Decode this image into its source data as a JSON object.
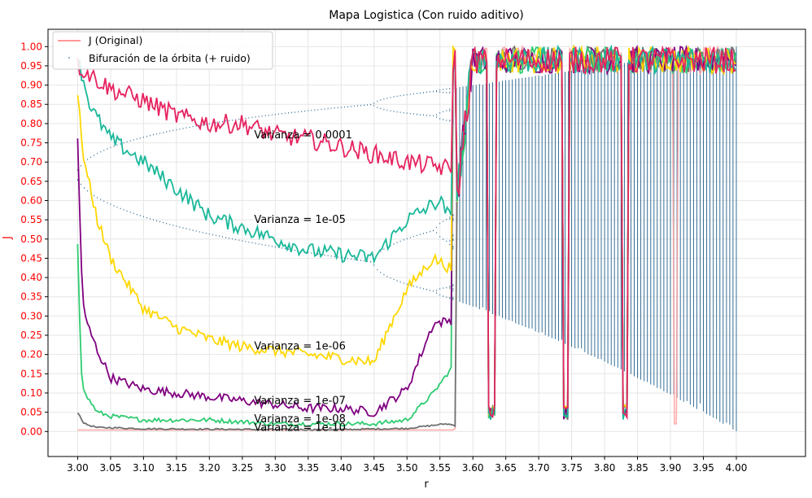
{
  "chart_data": {
    "type": "line",
    "title": "Mapa Logistica (Con ruido aditivo)",
    "xlabel": "r",
    "ylabel": "J",
    "xlim": [
      2.955,
      4.105
    ],
    "ylim": [
      -0.065,
      1.045
    ],
    "grid": true,
    "x_ticks": [
      "3.00",
      "3.05",
      "3.10",
      "3.15",
      "3.20",
      "3.25",
      "3.30",
      "3.35",
      "3.40",
      "3.45",
      "3.50",
      "3.55",
      "3.60",
      "3.65",
      "3.70",
      "3.75",
      "3.80",
      "3.85",
      "3.90",
      "3.95",
      "4.00"
    ],
    "y_ticks": [
      "0.00",
      "0.05",
      "0.10",
      "0.15",
      "0.20",
      "0.25",
      "0.30",
      "0.35",
      "0.40",
      "0.45",
      "0.50",
      "0.55",
      "0.60",
      "0.65",
      "0.70",
      "0.75",
      "0.80",
      "0.85",
      "0.90",
      "0.95",
      "1.00"
    ],
    "colors": {
      "bifurcation": "#1f5f8b",
      "original": "#ff9999",
      "v0_0001": "#e6235f",
      "v1e_05": "#1ab89a",
      "v1e_06": "#ffd700",
      "v1e_07": "#800080",
      "v1e_08": "#2ecc71",
      "v1e_10": "#707070",
      "ytick": "#ff0000"
    },
    "legend": {
      "position": "top-left",
      "entries": [
        "J (Original)",
        "Bifuración de la órbita (+ ruido)"
      ]
    },
    "annotations": [
      {
        "text": "Varianza = 0.0001",
        "x": 3.268,
        "y": 0.762
      },
      {
        "text": "Varianza = 1e-05",
        "x": 3.268,
        "y": 0.542
      },
      {
        "text": "Varianza = 1e-06",
        "x": 3.268,
        "y": 0.213
      },
      {
        "text": "Varianza = 1e-07",
        "x": 3.268,
        "y": 0.071
      },
      {
        "text": "Varianza = 1e-08",
        "x": 3.268,
        "y": 0.024
      },
      {
        "text": "Varianza = 1e-10",
        "x": 3.268,
        "y": 0.002
      }
    ],
    "series": [
      {
        "key": "v0_0001",
        "x": [
          3.0,
          3.05,
          3.1,
          3.15,
          3.2,
          3.25,
          3.3,
          3.35,
          3.4,
          3.45,
          3.5,
          3.54,
          3.57
        ],
        "y": [
          0.95,
          0.89,
          0.86,
          0.82,
          0.8,
          0.8,
          0.77,
          0.76,
          0.74,
          0.72,
          0.7,
          0.69,
          0.68
        ]
      },
      {
        "key": "v1e_05",
        "x": [
          3.0,
          3.02,
          3.05,
          3.1,
          3.15,
          3.2,
          3.25,
          3.3,
          3.35,
          3.4,
          3.45,
          3.5,
          3.55,
          3.57
        ],
        "y": [
          0.97,
          0.84,
          0.76,
          0.7,
          0.63,
          0.56,
          0.53,
          0.5,
          0.47,
          0.46,
          0.45,
          0.55,
          0.6,
          0.54
        ]
      },
      {
        "key": "v1e_06",
        "x": [
          3.0,
          3.01,
          3.03,
          3.05,
          3.1,
          3.15,
          3.2,
          3.25,
          3.3,
          3.35,
          3.4,
          3.45,
          3.47,
          3.5,
          3.54,
          3.57
        ],
        "y": [
          0.87,
          0.7,
          0.55,
          0.45,
          0.32,
          0.27,
          0.24,
          0.22,
          0.21,
          0.2,
          0.19,
          0.18,
          0.26,
          0.37,
          0.45,
          0.42
        ]
      },
      {
        "key": "v1e_07",
        "x": [
          3.0,
          3.005,
          3.01,
          3.03,
          3.05,
          3.1,
          3.15,
          3.2,
          3.25,
          3.3,
          3.35,
          3.4,
          3.45,
          3.5,
          3.54,
          3.57
        ],
        "y": [
          0.76,
          0.45,
          0.3,
          0.21,
          0.14,
          0.11,
          0.1,
          0.09,
          0.08,
          0.07,
          0.06,
          0.06,
          0.05,
          0.11,
          0.28,
          0.29
        ]
      },
      {
        "key": "v1e_08",
        "x": [
          3.0,
          3.005,
          3.01,
          3.03,
          3.05,
          3.1,
          3.2,
          3.3,
          3.4,
          3.45,
          3.5,
          3.54,
          3.57
        ],
        "y": [
          0.49,
          0.17,
          0.1,
          0.05,
          0.04,
          0.03,
          0.03,
          0.02,
          0.02,
          0.02,
          0.03,
          0.1,
          0.17
        ]
      },
      {
        "key": "v1e_10",
        "x": [
          3.0,
          3.01,
          3.03,
          3.05,
          3.1,
          3.2,
          3.3,
          3.4,
          3.5,
          3.56,
          3.575
        ],
        "y": [
          0.05,
          0.02,
          0.01,
          0.01,
          0.007,
          0.006,
          0.005,
          0.005,
          0.008,
          0.02,
          0.015
        ]
      },
      {
        "key": "original",
        "x": [
          3.0,
          3.57,
          3.575
        ],
        "y": [
          0.004,
          0.004,
          0.01
        ]
      }
    ],
    "windows": [
      3.628,
      3.74,
      3.83
    ]
  }
}
